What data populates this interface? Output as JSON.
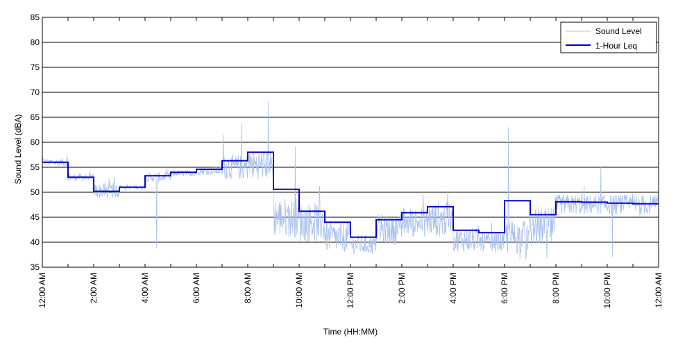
{
  "chart_data": {
    "type": "line",
    "title": "",
    "xlabel": "Time (HH:MM)",
    "ylabel": "Sound Level (dBA)",
    "ylim": [
      35,
      85
    ],
    "yticks": [
      35,
      40,
      45,
      50,
      55,
      60,
      65,
      70,
      75,
      80,
      85
    ],
    "xlim_hours": [
      0,
      24
    ],
    "xtick_labels": [
      "12:00 AM",
      "2:00 AM",
      "4:00 AM",
      "6:00 AM",
      "8:00 AM",
      "10:00 AM",
      "12:00 PM",
      "2:00 PM",
      "4:00 PM",
      "6:00 PM",
      "8:00 PM",
      "10:00 PM",
      "12:00 AM"
    ],
    "grid": "horizontal",
    "legend_position": "top-right",
    "colors": {
      "sound_level": "#a8c0ef",
      "leq": "#0000cc"
    },
    "series": [
      {
        "name": "Sound Level",
        "style": "thin-light-blue",
        "hourly_profile": [
          {
            "hour": 0,
            "mean": 56.0,
            "spread": 0.8
          },
          {
            "hour": 1,
            "mean": 53.0,
            "spread": 0.7
          },
          {
            "hour": 2,
            "mean": 50.3,
            "spread": 1.5
          },
          {
            "hour": 3,
            "mean": 51.0,
            "spread": 0.5
          },
          {
            "hour": 4,
            "mean": 53.0,
            "spread": 1.0
          },
          {
            "hour": 5,
            "mean": 53.8,
            "spread": 0.6
          },
          {
            "hour": 6,
            "mean": 54.3,
            "spread": 0.8
          },
          {
            "hour": 7,
            "mean": 55.0,
            "spread": 2.5
          },
          {
            "hour": 8,
            "mean": 55.5,
            "spread": 3.0
          },
          {
            "hour": 9,
            "mean": 45.0,
            "spread": 4.0
          },
          {
            "hour": 10,
            "mean": 44.0,
            "spread": 4.0
          },
          {
            "hour": 11,
            "mean": 41.0,
            "spread": 3.0
          },
          {
            "hour": 12,
            "mean": 39.5,
            "spread": 2.0
          },
          {
            "hour": 13,
            "mean": 42.5,
            "spread": 3.0
          },
          {
            "hour": 14,
            "mean": 44.0,
            "spread": 3.0
          },
          {
            "hour": 15,
            "mean": 44.5,
            "spread": 3.5
          },
          {
            "hour": 16,
            "mean": 40.5,
            "spread": 2.5
          },
          {
            "hour": 17,
            "mean": 40.0,
            "spread": 2.0
          },
          {
            "hour": 18,
            "mean": 41.0,
            "spread": 3.5
          },
          {
            "hour": 19,
            "mean": 43.0,
            "spread": 4.0
          },
          {
            "hour": 20,
            "mean": 47.5,
            "spread": 2.0
          },
          {
            "hour": 21,
            "mean": 47.5,
            "spread": 2.0
          },
          {
            "hour": 22,
            "mean": 47.5,
            "spread": 2.0
          },
          {
            "hour": 23,
            "mean": 47.5,
            "spread": 2.0
          }
        ],
        "spikes": [
          {
            "hour": 4.45,
            "value": 38.8
          },
          {
            "hour": 7.05,
            "value": 61.5
          },
          {
            "hour": 7.75,
            "value": 63.8
          },
          {
            "hour": 8.8,
            "value": 68.2
          },
          {
            "hour": 9.85,
            "value": 59.2
          },
          {
            "hour": 18.15,
            "value": 63.0
          },
          {
            "hour": 19.65,
            "value": 36.8
          },
          {
            "hour": 21.75,
            "value": 55.0
          },
          {
            "hour": 22.2,
            "value": 37.0
          }
        ]
      },
      {
        "name": "1-Hour Leq",
        "style": "thick-dark-blue",
        "hours": [
          0,
          1,
          2,
          3,
          4,
          5,
          6,
          7,
          8,
          9,
          10,
          11,
          12,
          13,
          14,
          15,
          16,
          17,
          18,
          19,
          20,
          21,
          22,
          23
        ],
        "values": [
          56.0,
          53.0,
          50.2,
          51.0,
          53.3,
          54.0,
          54.6,
          56.3,
          58.0,
          50.6,
          46.2,
          44.0,
          41.0,
          44.5,
          45.9,
          47.1,
          42.4,
          41.9,
          48.3,
          45.5,
          48.1,
          48.0,
          47.8,
          47.7
        ]
      }
    ]
  }
}
